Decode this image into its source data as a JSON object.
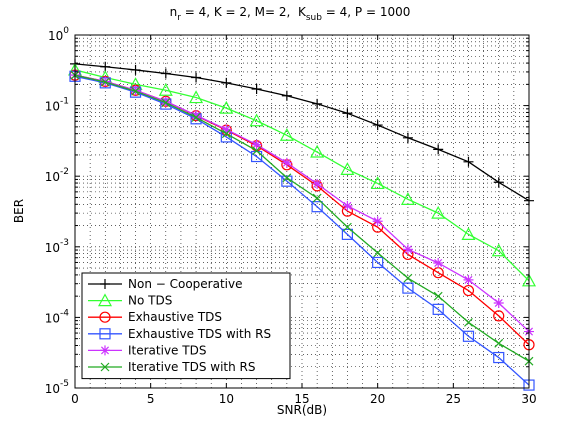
{
  "chart_data": {
    "type": "line",
    "title_parts": {
      "nr_base": "n",
      "nr_sub": "r",
      "nr_rest": " = 4, K = 2, M= 2,  K",
      "ksub_sub": "sub",
      "ksub_rest": " = 4, P = 1000"
    },
    "xlabel": "SNR(dB)",
    "ylabel": "BER",
    "xlim": [
      0,
      30
    ],
    "ylim": [
      1e-05,
      1
    ],
    "yscale": "log",
    "grid": true,
    "legend_position": "bottom-left",
    "x_ticks": [
      0,
      5,
      10,
      15,
      20,
      25,
      30
    ],
    "y_ticks": [
      {
        "value": 1,
        "base": "10",
        "exp": "0"
      },
      {
        "value": 0.1,
        "base": "10",
        "exp": "-1"
      },
      {
        "value": 0.01,
        "base": "10",
        "exp": "-2"
      },
      {
        "value": 0.001,
        "base": "10",
        "exp": "-3"
      },
      {
        "value": 0.0001,
        "base": "10",
        "exp": "-4"
      },
      {
        "value": 1e-05,
        "base": "10",
        "exp": "-5"
      }
    ],
    "x": [
      0,
      2,
      4,
      6,
      8,
      10,
      12,
      14,
      16,
      18,
      20,
      22,
      24,
      26,
      28,
      30
    ],
    "series": [
      {
        "name": "Non − Cooperative",
        "color": "#000000",
        "marker": "plus",
        "values": [
          0.39,
          0.355,
          0.32,
          0.285,
          0.25,
          0.21,
          0.172,
          0.138,
          0.106,
          0.078,
          0.053,
          0.035,
          0.024,
          0.016,
          0.0082,
          0.0045
        ]
      },
      {
        "name": "No TDS",
        "color": "#33ff33",
        "marker": "triangle",
        "values": [
          0.32,
          0.25,
          0.2,
          0.165,
          0.13,
          0.092,
          0.061,
          0.038,
          0.022,
          0.0125,
          0.0079,
          0.0047,
          0.003,
          0.0015,
          0.00088,
          0.00033
        ]
      },
      {
        "name": "Exhaustive TDS",
        "color": "#ff0000",
        "marker": "circle",
        "values": [
          0.27,
          0.22,
          0.165,
          0.115,
          0.072,
          0.045,
          0.027,
          0.0145,
          0.0073,
          0.0032,
          0.0019,
          0.00078,
          0.00043,
          0.00024,
          0.000105,
          4.1e-05
        ]
      },
      {
        "name": "Exhaustive TDS with RS",
        "color": "#3355ff",
        "marker": "square",
        "values": [
          0.26,
          0.21,
          0.155,
          0.105,
          0.065,
          0.036,
          0.019,
          0.0085,
          0.0037,
          0.0015,
          0.0006,
          0.00026,
          0.00013,
          5.4e-05,
          2.7e-05,
          1.1e-05
        ]
      },
      {
        "name": "Iterative TDS",
        "color": "#cc33ff",
        "marker": "star",
        "values": [
          0.27,
          0.22,
          0.165,
          0.115,
          0.073,
          0.046,
          0.028,
          0.0155,
          0.0078,
          0.0038,
          0.0023,
          0.00092,
          0.00059,
          0.00034,
          0.00016,
          6.3e-05
        ]
      },
      {
        "name": "Iterative TDS with RS",
        "color": "#22aa22",
        "marker": "x",
        "values": [
          0.27,
          0.215,
          0.16,
          0.11,
          0.068,
          0.04,
          0.023,
          0.0095,
          0.0049,
          0.0019,
          0.00082,
          0.00036,
          0.0002,
          8.5e-05,
          4.3e-05,
          2.4e-05
        ]
      }
    ]
  }
}
